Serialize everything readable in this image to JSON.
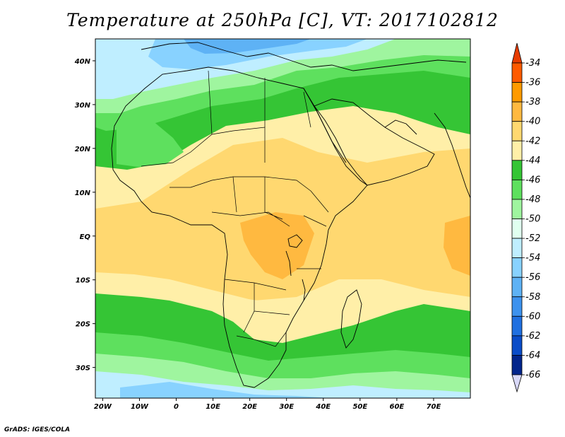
{
  "title": "Temperature at 250hPa [C], VT: 2017102812",
  "credit": "GrADS: IGES/COLA",
  "map": {
    "lon_range": [
      -22,
      80
    ],
    "lat_range": [
      -37,
      45
    ],
    "x_ticks": [
      {
        "lon": -20,
        "label": "20W"
      },
      {
        "lon": -10,
        "label": "10W"
      },
      {
        "lon": 0,
        "label": "0"
      },
      {
        "lon": 10,
        "label": "10E"
      },
      {
        "lon": 20,
        "label": "20E"
      },
      {
        "lon": 30,
        "label": "30E"
      },
      {
        "lon": 40,
        "label": "40E"
      },
      {
        "lon": 50,
        "label": "50E"
      },
      {
        "lon": 60,
        "label": "60E"
      },
      {
        "lon": 70,
        "label": "70E"
      }
    ],
    "y_ticks": [
      {
        "lat": 40,
        "label": "40N"
      },
      {
        "lat": 30,
        "label": "30N"
      },
      {
        "lat": 20,
        "label": "20N"
      },
      {
        "lat": 10,
        "label": "10N"
      },
      {
        "lat": 0,
        "label": "EQ"
      },
      {
        "lat": -10,
        "label": "10S"
      },
      {
        "lat": -20,
        "label": "20S"
      },
      {
        "lat": -30,
        "label": "30S"
      }
    ]
  },
  "colorbar": {
    "labels": [
      "-34",
      "-36",
      "-38",
      "-40",
      "-42",
      "-44",
      "-46",
      "-48",
      "-50",
      "-52",
      "-54",
      "-56",
      "-58",
      "-60",
      "-62",
      "-64",
      "-66"
    ],
    "colors": [
      "#ff5a00",
      "#ff9a00",
      "#ffb940",
      "#ffd870",
      "#ffefa8",
      "#35c535",
      "#5ee05e",
      "#9ff59f",
      "#e0fff0",
      "#bfeeff",
      "#88d2ff",
      "#5eb2f5",
      "#3d92ee",
      "#2070e0",
      "#0a4cc8",
      "#02258c"
    ],
    "over_color": "#e83c00",
    "under_color": "#d8d8f8"
  },
  "field_colors": {
    "t50": "#e0fff0",
    "t48": "#9ff59f",
    "t46": "#5ee05e",
    "t46b": "#35c535",
    "t44": "#ffefa8",
    "t42": "#ffd870",
    "t40": "#ffb940",
    "t52": "#bfeeff",
    "t54": "#88d2ff",
    "t56": "#5eb2f5"
  }
}
